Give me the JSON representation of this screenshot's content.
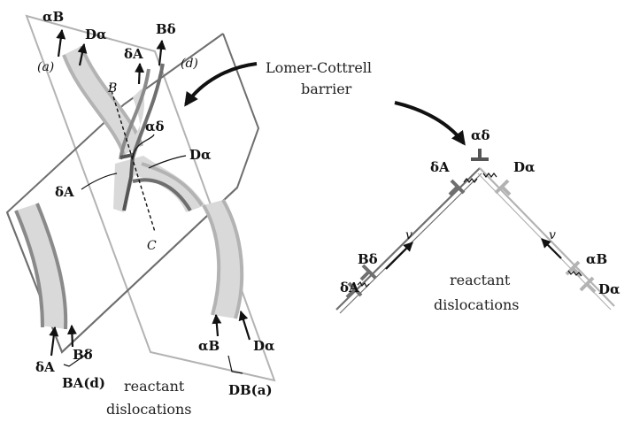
{
  "diagram": {
    "left": {
      "plane_a_label": "(a)",
      "plane_d_label": "(d)",
      "point_B": "B",
      "point_C": "C",
      "top_labels": {
        "alphaB": "αB",
        "Dalpha": "Dα",
        "deltaA": "δA",
        "Bdelta": "Bδ"
      },
      "mid_labels": {
        "alphadelta": "αδ",
        "Dalpha": "Dα",
        "deltaA": "δA"
      },
      "bottom_left": {
        "deltaA": "δA",
        "Bdelta": "Bδ",
        "group_label": "BA(d)"
      },
      "bottom_right": {
        "alphaB": "αB",
        "Dalpha": "Dα",
        "group_label": "DB(a)"
      },
      "caption_line1": "reactant",
      "caption_line2": "dislocations"
    },
    "callout": {
      "line1": "Lomer-Cottrell",
      "line2": "barrier"
    },
    "right": {
      "apex": "αδ",
      "upper_left": "δA",
      "upper_right": "Dα",
      "velocity_left": "v",
      "velocity_right": "v",
      "left_Bdelta": "Bδ",
      "left_deltaA": "δA",
      "right_alphaB": "αB",
      "right_Dalpha": "Dα",
      "caption_line1": "reactant",
      "caption_line2": "dislocations"
    },
    "colors": {
      "plane_edge": "#6f6f6f",
      "light_line": "#b3b3b3",
      "mid_line": "#8a8a8a",
      "dark_line": "#555555",
      "ribbon_fill": "#d9d9d9"
    }
  }
}
